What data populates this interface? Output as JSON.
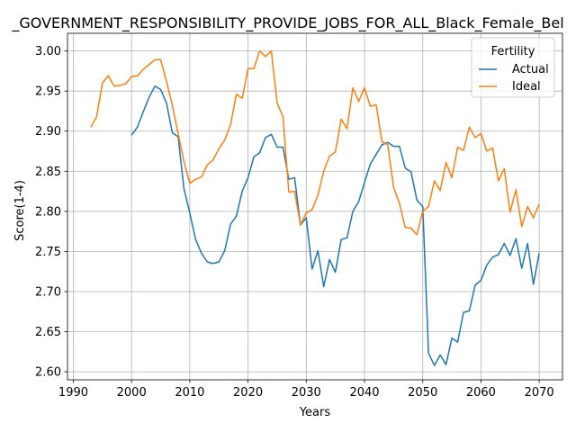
{
  "chart_data": {
    "type": "line",
    "title": "_GOVERNMENT_RESPONSIBILITY_PROVIDE_JOBS_FOR_ALL_Black_Female_Bel",
    "xlabel": "Years",
    "ylabel": "Score(1-4)",
    "xlim": [
      1989,
      2074
    ],
    "ylim": [
      2.59,
      3.022
    ],
    "xticks": [
      1990,
      2000,
      2010,
      2020,
      2030,
      2040,
      2050,
      2060,
      2070
    ],
    "yticks": [
      2.6,
      2.65,
      2.7,
      2.75,
      2.8,
      2.85,
      2.9,
      2.95,
      3.0
    ],
    "ytick_labels": [
      "2.60",
      "2.65",
      "2.70",
      "2.75",
      "2.80",
      "2.85",
      "2.90",
      "2.95",
      "3.00"
    ],
    "grid": true,
    "legend": {
      "title": "Fertility",
      "position": "top-right"
    },
    "series": [
      {
        "name": "Actual",
        "color": "#1f77b4",
        "x": [
          2000,
          2001,
          2002,
          2003,
          2004,
          2005,
          2006,
          2007,
          2008,
          2009,
          2010,
          2011,
          2012,
          2013,
          2014,
          2015,
          2016,
          2017,
          2018,
          2019,
          2020,
          2021,
          2022,
          2023,
          2024,
          2025,
          2026,
          2027,
          2028,
          2029,
          2030,
          2031,
          2032,
          2033,
          2034,
          2035,
          2036,
          2037,
          2038,
          2039,
          2040,
          2041,
          2042,
          2043,
          2044,
          2045,
          2046,
          2047,
          2048,
          2049,
          2050,
          2051,
          2052,
          2053,
          2054,
          2055,
          2056,
          2057,
          2058,
          2059,
          2060,
          2061,
          2062,
          2063,
          2064,
          2065,
          2066,
          2067,
          2068,
          2069,
          2070
        ],
        "y": [
          2.895,
          2.905,
          2.924,
          2.942,
          2.956,
          2.952,
          2.935,
          2.898,
          2.893,
          2.828,
          2.798,
          2.765,
          2.748,
          2.737,
          2.735,
          2.737,
          2.751,
          2.784,
          2.794,
          2.825,
          2.842,
          2.868,
          2.873,
          2.892,
          2.896,
          2.88,
          2.88,
          2.84,
          2.842,
          2.783,
          2.792,
          2.728,
          2.751,
          2.706,
          2.74,
          2.724,
          2.765,
          2.767,
          2.8,
          2.812,
          2.836,
          2.859,
          2.871,
          2.883,
          2.886,
          2.881,
          2.881,
          2.854,
          2.849,
          2.814,
          2.806,
          2.623,
          2.608,
          2.621,
          2.609,
          2.642,
          2.637,
          2.674,
          2.676,
          2.708,
          2.714,
          2.733,
          2.743,
          2.746,
          2.76,
          2.745,
          2.766,
          2.729,
          2.76,
          2.709,
          2.748
        ]
      },
      {
        "name": "Ideal",
        "color": "#ff7f0e",
        "x": [
          1993,
          1994,
          1995,
          1996,
          1997,
          1998,
          1999,
          2000,
          2001,
          2002,
          2003,
          2004,
          2005,
          2006,
          2007,
          2008,
          2009,
          2010,
          2011,
          2012,
          2013,
          2014,
          2015,
          2016,
          2017,
          2018,
          2019,
          2020,
          2021,
          2022,
          2023,
          2024,
          2025,
          2026,
          2027,
          2028,
          2029,
          2030,
          2031,
          2032,
          2033,
          2034,
          2035,
          2036,
          2037,
          2038,
          2039,
          2040,
          2041,
          2042,
          2043,
          2044,
          2045,
          2046,
          2047,
          2048,
          2049,
          2050,
          2051,
          2052,
          2053,
          2054,
          2055,
          2056,
          2057,
          2058,
          2059,
          2060,
          2061,
          2062,
          2063,
          2064,
          2065,
          2066,
          2067,
          2068,
          2069,
          2070
        ],
        "y": [
          2.905,
          2.918,
          2.96,
          2.969,
          2.956,
          2.957,
          2.959,
          2.968,
          2.969,
          2.977,
          2.983,
          2.989,
          2.989,
          2.962,
          2.932,
          2.897,
          2.862,
          2.835,
          2.84,
          2.843,
          2.858,
          2.864,
          2.878,
          2.889,
          2.908,
          2.946,
          2.941,
          2.978,
          2.978,
          3.0,
          2.993,
          3.0,
          2.935,
          2.918,
          2.824,
          2.825,
          2.783,
          2.798,
          2.802,
          2.82,
          2.85,
          2.869,
          2.874,
          2.915,
          2.903,
          2.954,
          2.937,
          2.954,
          2.931,
          2.933,
          2.887,
          2.883,
          2.83,
          2.81,
          2.78,
          2.779,
          2.771,
          2.8,
          2.806,
          2.838,
          2.826,
          2.861,
          2.842,
          2.88,
          2.876,
          2.905,
          2.892,
          2.897,
          2.875,
          2.879,
          2.838,
          2.853,
          2.799,
          2.827,
          2.781,
          2.806,
          2.792,
          2.809
        ]
      }
    ]
  }
}
